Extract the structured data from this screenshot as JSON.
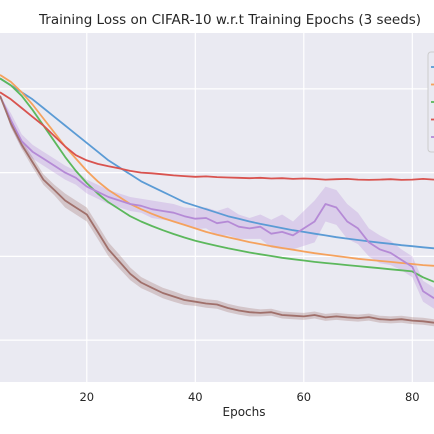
{
  "chart_data": {
    "type": "line",
    "title": "Training Loss on CIFAR-10 w.r.t Training Epochs (3 seeds)",
    "xlabel": "Epochs",
    "ylabel": "",
    "xlim": [
      4,
      84
    ],
    "ylim": [
      0,
      1
    ],
    "xticks": [
      20,
      40,
      60,
      80
    ],
    "grid": true,
    "legend": "top-right",
    "series": [
      {
        "color": "#5b9bd5",
        "x": [
          4,
          6,
          8,
          10,
          12,
          14,
          16,
          18,
          20,
          22,
          24,
          26,
          28,
          30,
          32,
          34,
          36,
          38,
          40,
          42,
          44,
          46,
          48,
          50,
          52,
          54,
          56,
          58,
          60,
          62,
          64,
          66,
          68,
          70,
          72,
          74,
          76,
          78,
          80,
          82,
          84
        ],
        "y": [
          0.87,
          0.85,
          0.83,
          0.81,
          0.785,
          0.76,
          0.735,
          0.71,
          0.685,
          0.66,
          0.635,
          0.615,
          0.595,
          0.575,
          0.56,
          0.545,
          0.53,
          0.515,
          0.505,
          0.495,
          0.485,
          0.475,
          0.468,
          0.46,
          0.453,
          0.447,
          0.441,
          0.435,
          0.43,
          0.425,
          0.42,
          0.415,
          0.411,
          0.407,
          0.403,
          0.399,
          0.396,
          0.392,
          0.389,
          0.386,
          0.383
        ]
      },
      {
        "color": "#f5a25d",
        "x": [
          4,
          6,
          8,
          10,
          12,
          14,
          16,
          18,
          20,
          22,
          24,
          26,
          28,
          30,
          32,
          34,
          36,
          38,
          40,
          42,
          44,
          46,
          48,
          50,
          52,
          54,
          56,
          58,
          60,
          62,
          64,
          66,
          68,
          70,
          72,
          74,
          76,
          78,
          80,
          82,
          84
        ],
        "y": [
          0.88,
          0.86,
          0.83,
          0.795,
          0.755,
          0.715,
          0.675,
          0.64,
          0.605,
          0.575,
          0.55,
          0.53,
          0.51,
          0.495,
          0.482,
          0.47,
          0.46,
          0.45,
          0.44,
          0.43,
          0.422,
          0.415,
          0.408,
          0.401,
          0.395,
          0.389,
          0.384,
          0.379,
          0.374,
          0.369,
          0.365,
          0.361,
          0.357,
          0.353,
          0.35,
          0.347,
          0.344,
          0.341,
          0.338,
          0.335,
          0.333
        ]
      },
      {
        "color": "#5cb85c",
        "x": [
          4,
          6,
          8,
          10,
          12,
          14,
          16,
          18,
          20,
          22,
          24,
          26,
          28,
          30,
          32,
          34,
          36,
          38,
          40,
          42,
          44,
          46,
          48,
          50,
          52,
          54,
          56,
          58,
          60,
          62,
          64,
          66,
          68,
          70,
          72,
          74,
          76,
          78,
          80,
          82,
          84
        ],
        "y": [
          0.87,
          0.85,
          0.82,
          0.78,
          0.735,
          0.69,
          0.645,
          0.605,
          0.57,
          0.54,
          0.515,
          0.495,
          0.475,
          0.46,
          0.447,
          0.435,
          0.424,
          0.414,
          0.405,
          0.397,
          0.39,
          0.383,
          0.377,
          0.371,
          0.366,
          0.361,
          0.356,
          0.352,
          0.348,
          0.344,
          0.341,
          0.338,
          0.335,
          0.332,
          0.329,
          0.326,
          0.323,
          0.32,
          0.317,
          0.3,
          0.287
        ]
      },
      {
        "color": "#d9534f",
        "x": [
          4,
          6,
          8,
          10,
          12,
          14,
          16,
          18,
          20,
          22,
          24,
          26,
          28,
          30,
          32,
          34,
          36,
          38,
          40,
          42,
          44,
          46,
          48,
          50,
          52,
          54,
          56,
          58,
          60,
          62,
          64,
          66,
          68,
          70,
          72,
          74,
          76,
          78,
          80,
          82,
          84
        ],
        "y": [
          0.83,
          0.81,
          0.785,
          0.76,
          0.735,
          0.705,
          0.675,
          0.65,
          0.635,
          0.625,
          0.618,
          0.612,
          0.605,
          0.6,
          0.598,
          0.595,
          0.592,
          0.59,
          0.588,
          0.589,
          0.587,
          0.586,
          0.585,
          0.584,
          0.585,
          0.583,
          0.584,
          0.582,
          0.583,
          0.582,
          0.58,
          0.581,
          0.582,
          0.58,
          0.579,
          0.58,
          0.581,
          0.579,
          0.58,
          0.582,
          0.58
        ]
      },
      {
        "color": "#b58ad6",
        "x": [
          4,
          6,
          8,
          10,
          12,
          14,
          16,
          18,
          20,
          22,
          24,
          26,
          28,
          30,
          32,
          34,
          36,
          38,
          40,
          42,
          44,
          46,
          48,
          50,
          52,
          54,
          56,
          58,
          60,
          62,
          64,
          66,
          68,
          70,
          72,
          74,
          76,
          78,
          80,
          82,
          84
        ],
        "y": [
          0.82,
          0.75,
          0.69,
          0.66,
          0.64,
          0.62,
          0.6,
          0.585,
          0.56,
          0.545,
          0.53,
          0.52,
          0.51,
          0.505,
          0.495,
          0.49,
          0.485,
          0.475,
          0.468,
          0.47,
          0.455,
          0.46,
          0.445,
          0.44,
          0.445,
          0.425,
          0.43,
          0.42,
          0.44,
          0.46,
          0.51,
          0.5,
          0.46,
          0.44,
          0.4,
          0.38,
          0.37,
          0.35,
          0.33,
          0.26,
          0.24
        ],
        "band": [
          0.0,
          0.02,
          0.02,
          0.02,
          0.02,
          0.02,
          0.02,
          0.02,
          0.02,
          0.02,
          0.02,
          0.02,
          0.02,
          0.02,
          0.025,
          0.025,
          0.025,
          0.025,
          0.03,
          0.03,
          0.035,
          0.04,
          0.035,
          0.03,
          0.035,
          0.04,
          0.05,
          0.04,
          0.05,
          0.06,
          0.05,
          0.05,
          0.05,
          0.045,
          0.04,
          0.04,
          0.035,
          0.03,
          0.03,
          0.03,
          0.03
        ]
      },
      {
        "color": "#a0706b",
        "x": [
          4,
          6,
          8,
          10,
          12,
          14,
          16,
          18,
          20,
          22,
          24,
          26,
          28,
          30,
          32,
          34,
          36,
          38,
          40,
          42,
          44,
          46,
          48,
          50,
          52,
          54,
          56,
          58,
          60,
          62,
          64,
          66,
          68,
          70,
          72,
          74,
          76,
          78,
          80,
          82,
          84
        ],
        "y": [
          0.82,
          0.74,
          0.68,
          0.63,
          0.58,
          0.55,
          0.52,
          0.5,
          0.48,
          0.43,
          0.38,
          0.345,
          0.31,
          0.285,
          0.27,
          0.255,
          0.245,
          0.235,
          0.23,
          0.225,
          0.222,
          0.212,
          0.205,
          0.2,
          0.198,
          0.2,
          0.192,
          0.19,
          0.188,
          0.192,
          0.185,
          0.188,
          0.185,
          0.183,
          0.186,
          0.18,
          0.178,
          0.18,
          0.176,
          0.174,
          0.17
        ],
        "band": [
          0.0,
          0.01,
          0.012,
          0.015,
          0.015,
          0.015,
          0.02,
          0.02,
          0.02,
          0.02,
          0.02,
          0.02,
          0.018,
          0.016,
          0.015,
          0.015,
          0.015,
          0.014,
          0.012,
          0.012,
          0.012,
          0.012,
          0.012,
          0.012,
          0.01,
          0.01,
          0.01,
          0.01,
          0.01,
          0.01,
          0.01,
          0.01,
          0.01,
          0.01,
          0.01,
          0.01,
          0.01,
          0.01,
          0.01,
          0.01,
          0.01
        ]
      }
    ]
  }
}
